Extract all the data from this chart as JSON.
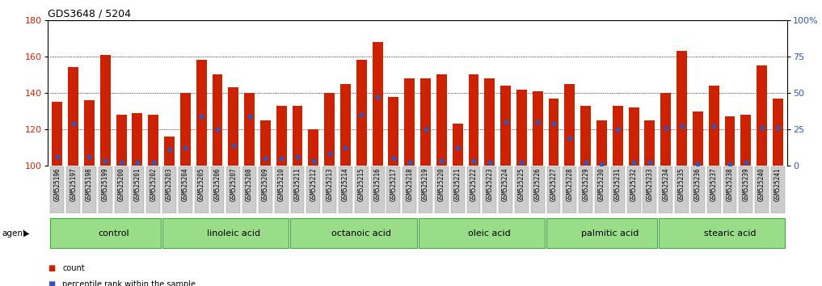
{
  "title": "GDS3648 / 5204",
  "gsm_labels": [
    "GSM525196",
    "GSM525197",
    "GSM525198",
    "GSM525199",
    "GSM525200",
    "GSM525201",
    "GSM525202",
    "GSM525203",
    "GSM525204",
    "GSM525205",
    "GSM525206",
    "GSM525207",
    "GSM525208",
    "GSM525209",
    "GSM525210",
    "GSM525211",
    "GSM525212",
    "GSM525213",
    "GSM525214",
    "GSM525215",
    "GSM525216",
    "GSM525217",
    "GSM525218",
    "GSM525219",
    "GSM525220",
    "GSM525221",
    "GSM525222",
    "GSM525223",
    "GSM525224",
    "GSM525225",
    "GSM525226",
    "GSM525227",
    "GSM525228",
    "GSM525229",
    "GSM525230",
    "GSM525231",
    "GSM525232",
    "GSM525233",
    "GSM525234",
    "GSM525235",
    "GSM525236",
    "GSM525237",
    "GSM525238",
    "GSM525239",
    "GSM525240",
    "GSM525241"
  ],
  "bar_heights": [
    135,
    154,
    136,
    161,
    128,
    129,
    128,
    116,
    140,
    158,
    150,
    143,
    140,
    125,
    133,
    133,
    120,
    140,
    145,
    158,
    168,
    138,
    148,
    148,
    150,
    123,
    150,
    148,
    144,
    142,
    141,
    137,
    145,
    133,
    125,
    133,
    132,
    125,
    140,
    163,
    130,
    144,
    127,
    128,
    155,
    137
  ],
  "blue_heights": [
    105,
    123,
    105,
    103,
    102,
    102,
    102,
    109,
    110,
    127,
    120,
    111,
    127,
    104,
    104,
    105,
    103,
    107,
    110,
    128,
    138,
    104,
    102,
    120,
    103,
    110,
    103,
    102,
    124,
    102,
    124,
    123,
    115,
    102,
    101,
    120,
    102,
    102,
    121,
    122,
    101,
    122,
    101,
    102,
    121,
    121
  ],
  "groups": [
    {
      "label": "control",
      "start": 0,
      "end": 7
    },
    {
      "label": "linoleic acid",
      "start": 7,
      "end": 15
    },
    {
      "label": "octanoic acid",
      "start": 15,
      "end": 23
    },
    {
      "label": "oleic acid",
      "start": 23,
      "end": 31
    },
    {
      "label": "palmitic acid",
      "start": 31,
      "end": 38
    },
    {
      "label": "stearic acid",
      "start": 38,
      "end": 46
    }
  ],
  "bar_color": "#CC2200",
  "blue_color": "#3355BB",
  "group_bg_color": "#99DD88",
  "group_border_color": "#44AA44",
  "tick_bg_color": "#CCCCCC",
  "tick_border_color": "#999999",
  "sep_color": "#333333",
  "ylim_left": [
    100,
    180
  ],
  "ylim_right": [
    0,
    100
  ],
  "yticks_left": [
    100,
    120,
    140,
    160,
    180
  ],
  "yticks_right": [
    0,
    25,
    50,
    75,
    100
  ],
  "grid_lines": [
    120,
    140,
    160
  ],
  "agent_label": "agent",
  "legend": [
    {
      "label": "count",
      "color": "#CC2200"
    },
    {
      "label": "percentile rank within the sample",
      "color": "#3355BB"
    }
  ],
  "title_fontsize": 9,
  "axis_fontsize": 8,
  "tick_fontsize": 5.5,
  "group_label_fontsize": 8,
  "legend_fontsize": 7
}
